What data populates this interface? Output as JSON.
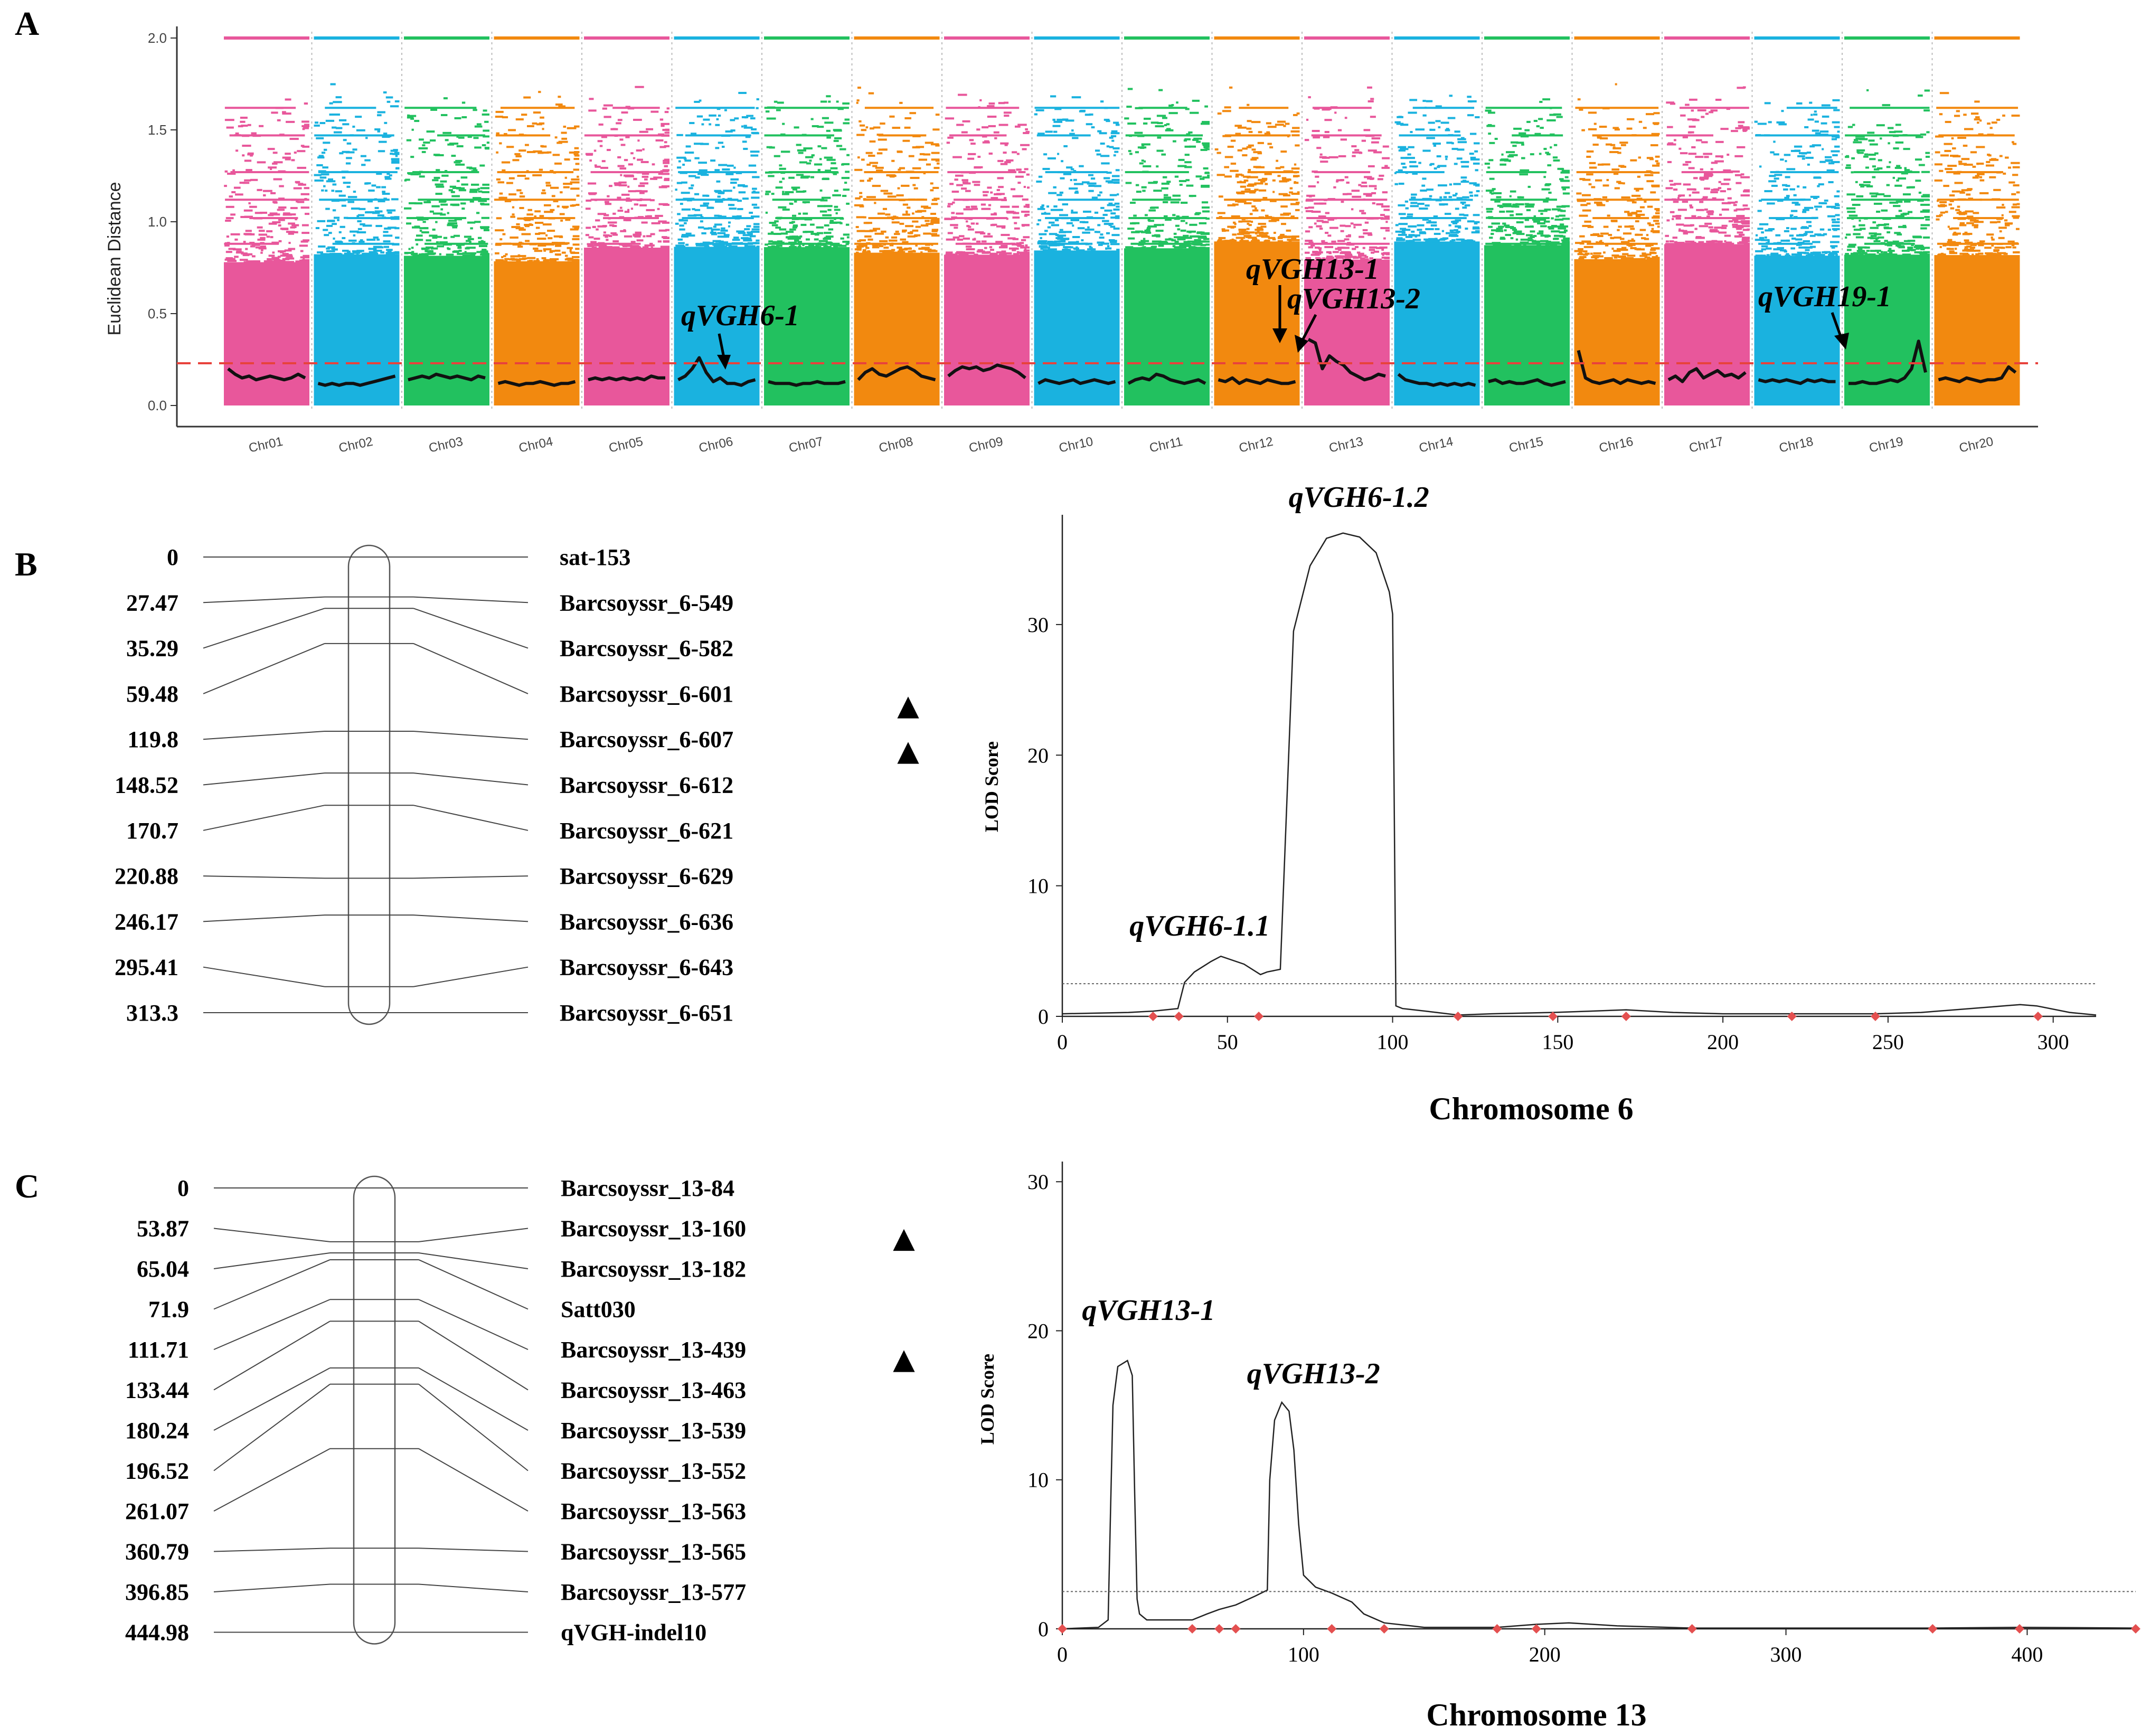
{
  "panels": {
    "a": "A",
    "b": "B",
    "c": "C"
  },
  "chart_data": [
    {
      "id": "A",
      "type": "scatter",
      "title": "",
      "ylabel": "Euclidean Distance",
      "xlabel": "",
      "ylim": [
        0,
        2.0
      ],
      "yticks": [
        "0.0",
        "0.5",
        "1.0",
        "1.5",
        "2.0"
      ],
      "threshold": 0.23,
      "chromosomes": [
        "Chr01",
        "Chr02",
        "Chr03",
        "Chr04",
        "Chr05",
        "Chr06",
        "Chr07",
        "Chr08",
        "Chr09",
        "Chr10",
        "Chr11",
        "Chr12",
        "Chr13",
        "Chr14",
        "Chr15",
        "Chr16",
        "Chr17",
        "Chr18",
        "Chr19",
        "Chr20"
      ],
      "colors": [
        "#e8579b",
        "#1ab2df",
        "#22c15f",
        "#f2890f"
      ],
      "fitted_line": [
        {
          "chr": "Chr01",
          "values": [
            0.2,
            0.17,
            0.15,
            0.16,
            0.14,
            0.15,
            0.16,
            0.15,
            0.14,
            0.15,
            0.17,
            0.15
          ]
        },
        {
          "chr": "Chr02",
          "values": [
            0.12,
            0.11,
            0.12,
            0.11,
            0.12,
            0.12,
            0.11,
            0.12,
            0.13,
            0.14,
            0.15,
            0.16
          ]
        },
        {
          "chr": "Chr03",
          "values": [
            0.14,
            0.15,
            0.16,
            0.15,
            0.17,
            0.16,
            0.15,
            0.16,
            0.15,
            0.14,
            0.16,
            0.15
          ]
        },
        {
          "chr": "Chr04",
          "values": [
            0.12,
            0.13,
            0.12,
            0.11,
            0.12,
            0.12,
            0.13,
            0.12,
            0.11,
            0.12,
            0.12,
            0.13
          ]
        },
        {
          "chr": "Chr05",
          "values": [
            0.14,
            0.15,
            0.14,
            0.15,
            0.14,
            0.15,
            0.14,
            0.15,
            0.14,
            0.16,
            0.15,
            0.15
          ]
        },
        {
          "chr": "Chr06",
          "values": [
            0.14,
            0.16,
            0.2,
            0.26,
            0.18,
            0.13,
            0.15,
            0.12,
            0.12,
            0.11,
            0.13,
            0.14
          ]
        },
        {
          "chr": "Chr07",
          "values": [
            0.13,
            0.12,
            0.12,
            0.12,
            0.11,
            0.12,
            0.12,
            0.13,
            0.12,
            0.12,
            0.12,
            0.13
          ]
        },
        {
          "chr": "Chr08",
          "values": [
            0.14,
            0.18,
            0.2,
            0.17,
            0.16,
            0.18,
            0.2,
            0.21,
            0.19,
            0.16,
            0.15,
            0.14
          ]
        },
        {
          "chr": "Chr09",
          "values": [
            0.16,
            0.19,
            0.21,
            0.2,
            0.21,
            0.19,
            0.2,
            0.22,
            0.21,
            0.2,
            0.18,
            0.15
          ]
        },
        {
          "chr": "Chr10",
          "values": [
            0.12,
            0.14,
            0.13,
            0.12,
            0.13,
            0.14,
            0.12,
            0.13,
            0.14,
            0.13,
            0.12,
            0.13
          ]
        },
        {
          "chr": "Chr11",
          "values": [
            0.12,
            0.14,
            0.15,
            0.14,
            0.17,
            0.16,
            0.14,
            0.13,
            0.12,
            0.13,
            0.14,
            0.12
          ]
        },
        {
          "chr": "Chr12",
          "values": [
            0.14,
            0.13,
            0.15,
            0.12,
            0.14,
            0.13,
            0.12,
            0.14,
            0.13,
            0.12,
            0.12,
            0.13
          ]
        },
        {
          "chr": "Chr13",
          "values": [
            0.36,
            0.34,
            0.2,
            0.27,
            0.24,
            0.22,
            0.18,
            0.16,
            0.14,
            0.15,
            0.17,
            0.16
          ]
        },
        {
          "chr": "Chr14",
          "values": [
            0.17,
            0.14,
            0.13,
            0.12,
            0.12,
            0.11,
            0.12,
            0.11,
            0.12,
            0.11,
            0.12,
            0.11
          ]
        },
        {
          "chr": "Chr15",
          "values": [
            0.13,
            0.14,
            0.12,
            0.13,
            0.12,
            0.12,
            0.13,
            0.14,
            0.12,
            0.11,
            0.12,
            0.13
          ]
        },
        {
          "chr": "Chr16",
          "values": [
            0.3,
            0.15,
            0.13,
            0.12,
            0.13,
            0.14,
            0.12,
            0.14,
            0.13,
            0.12,
            0.13,
            0.12
          ]
        },
        {
          "chr": "Chr17",
          "values": [
            0.14,
            0.16,
            0.13,
            0.18,
            0.2,
            0.15,
            0.17,
            0.19,
            0.16,
            0.17,
            0.15,
            0.18
          ]
        },
        {
          "chr": "Chr18",
          "values": [
            0.14,
            0.13,
            0.14,
            0.13,
            0.14,
            0.13,
            0.12,
            0.14,
            0.13,
            0.14,
            0.13,
            0.13
          ]
        },
        {
          "chr": "Chr19",
          "values": [
            0.12,
            0.12,
            0.13,
            0.12,
            0.12,
            0.13,
            0.14,
            0.13,
            0.15,
            0.2,
            0.35,
            0.18
          ]
        },
        {
          "chr": "Chr20",
          "values": [
            0.14,
            0.15,
            0.14,
            0.13,
            0.15,
            0.14,
            0.13,
            0.14,
            0.14,
            0.15,
            0.21,
            0.18
          ]
        }
      ],
      "annotations": [
        {
          "text": "qVGH6-1",
          "chr": "Chr06"
        },
        {
          "text": "qVGH13-1",
          "chr": "Chr13"
        },
        {
          "text": "qVGH13-2",
          "chr": "Chr13"
        },
        {
          "text": "qVGH19-1",
          "chr": "Chr19"
        }
      ]
    },
    {
      "id": "B",
      "type": "line",
      "title": "",
      "xlabel": "Chromosome 6",
      "ylabel": "LOD Score",
      "xlim": [
        0,
        313
      ],
      "ylim": [
        0,
        38
      ],
      "xticks": [
        0,
        50,
        100,
        150,
        200,
        250,
        300
      ],
      "yticks": [
        0,
        10,
        20,
        30
      ],
      "threshold": 2.5,
      "x": [
        0,
        20,
        27.47,
        35,
        37,
        40,
        45,
        48,
        55,
        60,
        62,
        66,
        70,
        75,
        80,
        85,
        90,
        95,
        99,
        100,
        101,
        103,
        110,
        119.8,
        130,
        148.52,
        160,
        170.7,
        185,
        200,
        220.88,
        246.17,
        260,
        280,
        290,
        295,
        305,
        313
      ],
      "y": [
        0.2,
        0.3,
        0.4,
        0.6,
        2.6,
        3.4,
        4.2,
        4.6,
        4.0,
        3.2,
        3.4,
        3.6,
        29.5,
        34.5,
        36.6,
        37.0,
        36.7,
        35.5,
        32.5,
        30.8,
        0.8,
        0.6,
        0.4,
        0.1,
        0.2,
        0.3,
        0.4,
        0.5,
        0.3,
        0.2,
        0.2,
        0.2,
        0.3,
        0.7,
        0.9,
        0.8,
        0.3,
        0.1
      ],
      "marker_positions": [
        27.47,
        35.29,
        59.48,
        119.8,
        148.52,
        170.7,
        220.88,
        246.17,
        295.41
      ],
      "annotations": [
        {
          "text": "qVGH6-1.1",
          "x": 48
        },
        {
          "text": "qVGH6-1.2",
          "x": 85
        }
      ],
      "linkage_map": {
        "positions": [
          "0",
          "27.47",
          "35.29",
          "59.48",
          "119.8",
          "148.52",
          "170.7",
          "220.88",
          "246.17",
          "295.41",
          "313.3"
        ],
        "markers": [
          "sat-153",
          "Barcsoyssr_6-549",
          "Barcsoyssr_6-582",
          "Barcsoyssr_6-601",
          "Barcsoyssr_6-607",
          "Barcsoyssr_6-612",
          "Barcsoyssr_6-621",
          "Barcsoyssr_6-629",
          "Barcsoyssr_6-636",
          "Barcsoyssr_6-643",
          "Barcsoyssr_6-651"
        ],
        "qtl_flags": [
          "",
          "",
          "",
          "▲",
          "▲",
          "",
          "",
          "",
          "",
          "",
          ""
        ]
      }
    },
    {
      "id": "C",
      "type": "line",
      "title": "",
      "xlabel": "Chromosome 13",
      "ylabel": "LOD Score",
      "xlim": [
        0,
        445
      ],
      "ylim": [
        0,
        31
      ],
      "xticks": [
        0,
        100,
        200,
        300,
        400
      ],
      "yticks": [
        0,
        10,
        20,
        30
      ],
      "threshold": 2.5,
      "x": [
        0,
        15,
        19,
        20,
        21,
        23,
        27,
        29,
        30,
        31,
        32,
        35,
        53.87,
        60,
        65.04,
        71.9,
        80,
        85,
        86,
        88,
        91,
        94,
        96,
        98,
        100,
        105,
        111.71,
        120,
        125,
        133.44,
        150,
        180.24,
        196.52,
        210,
        230,
        261.07,
        300,
        360.79,
        396.85,
        444.98
      ],
      "y": [
        0,
        0.1,
        0.6,
        8,
        15,
        17.6,
        18,
        17,
        9,
        2,
        1,
        0.6,
        0.6,
        1.0,
        1.3,
        1.6,
        2.2,
        2.6,
        10,
        14,
        15.2,
        14.6,
        12,
        7,
        3.6,
        2.8,
        2.4,
        1.8,
        1.0,
        0.4,
        0.1,
        0.1,
        0.3,
        0.4,
        0.2,
        0.05,
        0.05,
        0.05,
        0.1,
        0.05
      ],
      "marker_positions": [
        0,
        53.87,
        65.04,
        71.9,
        111.71,
        133.44,
        180.24,
        196.52,
        261.07,
        360.79,
        396.85,
        444.98
      ],
      "annotations": [
        {
          "text": "qVGH13-1",
          "x": 27
        },
        {
          "text": "qVGH13-2",
          "x": 91
        }
      ],
      "linkage_map": {
        "positions": [
          "0",
          "53.87",
          "65.04",
          "71.9",
          "111.71",
          "133.44",
          "180.24",
          "196.52",
          "261.07",
          "360.79",
          "396.85",
          "444.98"
        ],
        "markers": [
          "Barcsoyssr_13-84",
          "Barcsoyssr_13-160",
          "Barcsoyssr_13-182",
          "Satt030",
          "Barcsoyssr_13-439",
          "Barcsoyssr_13-463",
          "Barcsoyssr_13-539",
          "Barcsoyssr_13-552",
          "Barcsoyssr_13-563",
          "Barcsoyssr_13-565",
          "Barcsoyssr_13-577",
          "qVGH-indel10"
        ],
        "qtl_flags": [
          "",
          "▲",
          "",
          "",
          "▲",
          "",
          "",
          "",
          "",
          "",
          "",
          ""
        ]
      }
    }
  ]
}
